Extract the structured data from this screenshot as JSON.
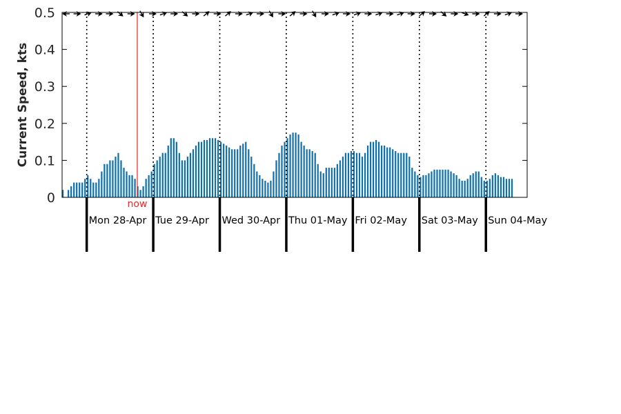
{
  "chart_data": {
    "type": "bar",
    "ylabel": "Current Speed, kts",
    "ylim": [
      0,
      0.5
    ],
    "yticks": [
      0,
      0.1,
      0.2,
      0.3,
      0.4,
      0.5
    ],
    "ytick_labels": [
      "0",
      "0.1",
      "0.2",
      "0.3",
      "0.4",
      "0.5"
    ],
    "grid": false,
    "colors": {
      "bars": "#0e6fad",
      "now": "#e8262a",
      "axis": "#000000",
      "text": "#262626"
    },
    "now_label": "now",
    "now_x_day": 0.76,
    "days": [
      {
        "label": "Mon 28-Apr",
        "start": 0
      },
      {
        "label": "Tue 29-Apr",
        "start": 1
      },
      {
        "label": "Wed 30-Apr",
        "start": 2
      },
      {
        "label": "Thu 01-May",
        "start": 3
      },
      {
        "label": "Fri 02-May",
        "start": 4
      },
      {
        "label": "Sat 03-May",
        "start": 5
      },
      {
        "label": "Sun 04-May",
        "start": 6
      }
    ],
    "x_range_days": [
      -0.37,
      6.62
    ],
    "bar_interval_hours": 1,
    "values": [
      0.02,
      0.0,
      0.02,
      0.03,
      0.04,
      0.04,
      0.04,
      0.04,
      0.05,
      0.06,
      0.05,
      0.04,
      0.04,
      0.05,
      0.07,
      0.09,
      0.09,
      0.1,
      0.1,
      0.11,
      0.12,
      0.1,
      0.08,
      0.07,
      0.06,
      0.06,
      0.05,
      0.03,
      0.02,
      0.03,
      0.05,
      0.06,
      0.07,
      0.09,
      0.1,
      0.11,
      0.12,
      0.12,
      0.14,
      0.16,
      0.16,
      0.15,
      0.12,
      0.1,
      0.1,
      0.11,
      0.12,
      0.13,
      0.14,
      0.15,
      0.15,
      0.155,
      0.155,
      0.16,
      0.16,
      0.16,
      0.155,
      0.15,
      0.145,
      0.14,
      0.135,
      0.13,
      0.13,
      0.13,
      0.14,
      0.145,
      0.15,
      0.13,
      0.11,
      0.09,
      0.07,
      0.06,
      0.05,
      0.045,
      0.04,
      0.045,
      0.07,
      0.1,
      0.12,
      0.14,
      0.15,
      0.16,
      0.17,
      0.175,
      0.175,
      0.17,
      0.15,
      0.14,
      0.13,
      0.13,
      0.125,
      0.12,
      0.09,
      0.07,
      0.065,
      0.08,
      0.08,
      0.08,
      0.08,
      0.09,
      0.1,
      0.11,
      0.12,
      0.12,
      0.125,
      0.125,
      0.12,
      0.12,
      0.11,
      0.12,
      0.14,
      0.15,
      0.15,
      0.155,
      0.15,
      0.14,
      0.14,
      0.135,
      0.135,
      0.13,
      0.125,
      0.12,
      0.12,
      0.12,
      0.12,
      0.11,
      0.08,
      0.07,
      0.06,
      0.055,
      0.06,
      0.06,
      0.065,
      0.07,
      0.075,
      0.075,
      0.075,
      0.075,
      0.075,
      0.075,
      0.07,
      0.065,
      0.06,
      0.05,
      0.045,
      0.045,
      0.05,
      0.06,
      0.065,
      0.07,
      0.07,
      0.055,
      0.045,
      0.045,
      0.05,
      0.06,
      0.065,
      0.06,
      0.055,
      0.055,
      0.05,
      0.05,
      0.05
    ],
    "direction_arrow_angles_deg": [
      180,
      0,
      20,
      0,
      0,
      -40,
      0,
      -60,
      0,
      20,
      0,
      -40,
      0,
      40,
      0,
      40,
      0,
      20,
      0,
      -60,
      0,
      40,
      0,
      -60,
      0,
      20,
      0,
      20,
      0,
      20,
      0,
      20,
      0,
      40,
      0,
      -40,
      0,
      -20,
      0,
      40,
      0,
      20,
      0
    ]
  }
}
